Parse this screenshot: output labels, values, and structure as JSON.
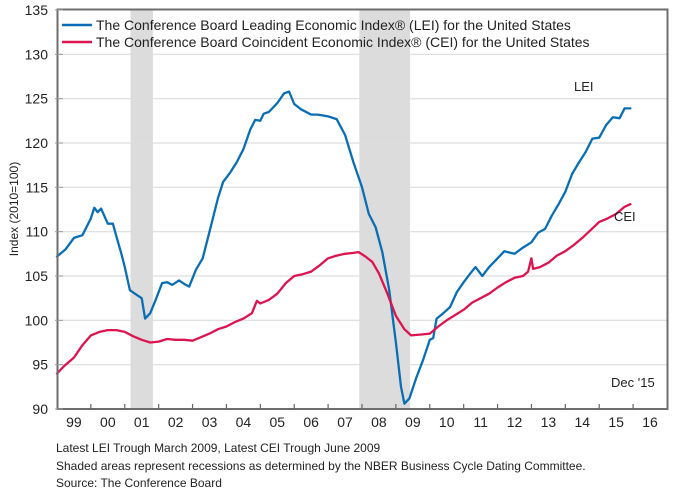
{
  "chart_data": {
    "type": "line",
    "title": "",
    "xlabel": "",
    "ylabel": "Index (2010=100)",
    "ylim": [
      90,
      135
    ],
    "xlim": [
      1999,
      2017
    ],
    "yticks": [
      "90",
      "95",
      "100",
      "105",
      "110",
      "115",
      "120",
      "125",
      "130",
      "135"
    ],
    "ytick_values": [
      90,
      95,
      100,
      105,
      110,
      115,
      120,
      125,
      130,
      135
    ],
    "xtick_labels": [
      "99",
      "00",
      "01",
      "02",
      "03",
      "04",
      "05",
      "06",
      "07",
      "08",
      "09",
      "10",
      "11",
      "12",
      "13",
      "14",
      "15",
      "16"
    ],
    "grid": "horizontal",
    "legend": {
      "position": "top-left",
      "entries": [
        "The Conference Board Leading Economic Index® (LEI) for the United States",
        "The Conference Board Coincident Economic Index® (CEI) for the United States"
      ]
    },
    "recessions": [
      {
        "start": 2001.17,
        "end": 2001.83
      },
      {
        "start": 2007.92,
        "end": 2009.42
      }
    ],
    "annotations": {
      "lei_label": "LEI",
      "cei_label": "CEI",
      "date_label": "Dec '15"
    },
    "series": [
      {
        "name": "LEI",
        "color": "#0a6eb4",
        "x": [
          1999.0,
          1999.25,
          1999.5,
          1999.75,
          2000.0,
          2000.1,
          2000.2,
          2000.3,
          2000.5,
          2000.65,
          2000.75,
          2000.9,
          2001.0,
          2001.15,
          2001.3,
          2001.5,
          2001.6,
          2001.75,
          2001.9,
          2002.1,
          2002.25,
          2002.4,
          2002.6,
          2002.8,
          2002.9,
          2003.1,
          2003.3,
          2003.5,
          2003.75,
          2003.9,
          2004.1,
          2004.3,
          2004.5,
          2004.7,
          2004.85,
          2005.0,
          2005.1,
          2005.25,
          2005.5,
          2005.7,
          2005.85,
          2006.0,
          2006.2,
          2006.5,
          2006.7,
          2007.0,
          2007.25,
          2007.5,
          2007.75,
          2008.0,
          2008.2,
          2008.4,
          2008.6,
          2008.8,
          2009.0,
          2009.15,
          2009.25,
          2009.4,
          2009.6,
          2009.8,
          2010.0,
          2010.1,
          2010.2,
          2010.4,
          2010.6,
          2010.8,
          2011.0,
          2011.2,
          2011.35,
          2011.55,
          2011.75,
          2012.0,
          2012.2,
          2012.5,
          2012.75,
          2013.0,
          2013.2,
          2013.4,
          2013.6,
          2013.8,
          2014.0,
          2014.2,
          2014.4,
          2014.6,
          2014.8,
          2015.0,
          2015.2,
          2015.4,
          2015.6,
          2015.75,
          2015.92
        ],
        "values": [
          107.2,
          108.0,
          109.3,
          109.6,
          111.5,
          112.7,
          112.2,
          112.6,
          110.9,
          110.9,
          109.5,
          107.5,
          106.0,
          103.4,
          103.0,
          102.5,
          100.2,
          100.8,
          102.2,
          104.2,
          104.3,
          104.0,
          104.5,
          104.0,
          103.8,
          105.7,
          107.0,
          110.0,
          113.8,
          115.6,
          116.6,
          117.8,
          119.3,
          121.5,
          122.6,
          122.5,
          123.3,
          123.5,
          124.5,
          125.6,
          125.8,
          124.4,
          123.8,
          123.2,
          123.2,
          123.0,
          122.7,
          120.9,
          117.8,
          115.0,
          112.0,
          110.5,
          107.7,
          103.5,
          97.5,
          92.5,
          90.6,
          91.2,
          93.5,
          95.5,
          97.8,
          98.0,
          100.2,
          100.8,
          101.5,
          103.2,
          104.3,
          105.3,
          106.0,
          105.0,
          106.0,
          107.0,
          107.8,
          107.5,
          108.2,
          108.8,
          109.9,
          110.3,
          111.8,
          113.1,
          114.5,
          116.5,
          117.8,
          119.0,
          120.5,
          120.6,
          122.0,
          122.9,
          122.8,
          123.9,
          123.9
        ]
      },
      {
        "name": "CEI",
        "color": "#dc1450",
        "x": [
          1999.0,
          1999.2,
          1999.5,
          1999.75,
          2000.0,
          2000.25,
          2000.5,
          2000.75,
          2001.0,
          2001.25,
          2001.5,
          2001.75,
          2002.0,
          2002.25,
          2002.5,
          2002.75,
          2003.0,
          2003.25,
          2003.5,
          2003.75,
          2004.0,
          2004.25,
          2004.5,
          2004.75,
          2004.9,
          2005.0,
          2005.25,
          2005.5,
          2005.75,
          2006.0,
          2006.25,
          2006.5,
          2006.75,
          2007.0,
          2007.25,
          2007.5,
          2007.75,
          2007.9,
          2008.1,
          2008.3,
          2008.5,
          2008.75,
          2009.0,
          2009.25,
          2009.45,
          2009.75,
          2010.0,
          2010.25,
          2010.5,
          2010.75,
          2011.0,
          2011.25,
          2011.5,
          2011.75,
          2012.0,
          2012.25,
          2012.5,
          2012.75,
          2012.9,
          2013.0,
          2013.05,
          2013.25,
          2013.5,
          2013.75,
          2014.0,
          2014.25,
          2014.5,
          2014.75,
          2015.0,
          2015.25,
          2015.5,
          2015.75,
          2015.92
        ],
        "values": [
          94.0,
          94.8,
          95.8,
          97.2,
          98.3,
          98.7,
          98.9,
          98.9,
          98.7,
          98.2,
          97.8,
          97.5,
          97.6,
          97.9,
          97.8,
          97.8,
          97.7,
          98.1,
          98.5,
          99.0,
          99.3,
          99.8,
          100.2,
          100.8,
          102.2,
          101.9,
          102.3,
          103.0,
          104.2,
          105.0,
          105.2,
          105.5,
          106.2,
          107.0,
          107.3,
          107.5,
          107.6,
          107.7,
          107.2,
          106.6,
          105.3,
          103.0,
          100.5,
          99.0,
          98.3,
          98.4,
          98.5,
          99.3,
          100.0,
          100.6,
          101.2,
          102.0,
          102.5,
          103.0,
          103.7,
          104.3,
          104.8,
          105.0,
          105.5,
          107.0,
          105.8,
          106.0,
          106.5,
          107.3,
          107.8,
          108.5,
          109.3,
          110.2,
          111.1,
          111.5,
          112.0,
          112.8,
          113.1
        ]
      }
    ]
  },
  "footnotes": {
    "line1": "Latest LEI Trough March 2009, Latest CEI Trough June 2009",
    "line2": "Shaded areas represent recessions as determined by the NBER Business Cycle Dating Committee.",
    "line3": "Source: The Conference Board"
  },
  "colors": {
    "recession_shade": "#dcdcdc",
    "gridline": "#dddddd",
    "frame": "#666666"
  }
}
